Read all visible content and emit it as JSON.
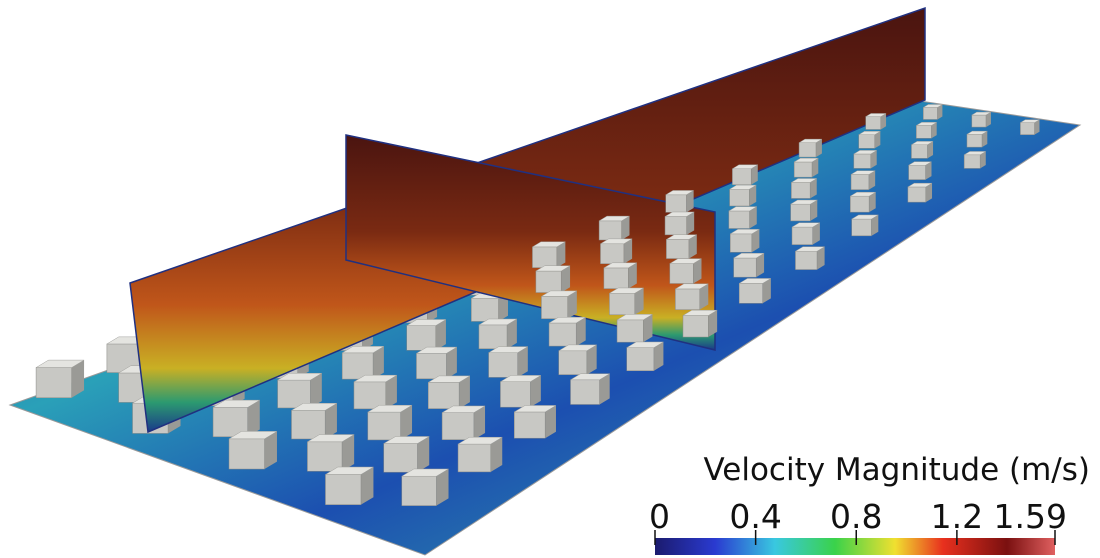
{
  "colorbar": {
    "title": "Velocity Magnitude (m/s)",
    "range": [
      0,
      1.59
    ],
    "ticks": [
      0,
      0.4,
      0.8,
      1.2,
      1.59
    ]
  }
}
